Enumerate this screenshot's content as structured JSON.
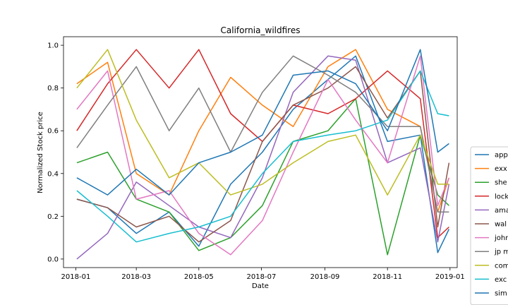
{
  "chart_data": {
    "type": "line",
    "title": "California_wildfires",
    "xlabel": "Date",
    "ylabel": "Normalized Stock price",
    "x_ticks": [
      "2018-01",
      "2018-03",
      "2018-05",
      "2018-07",
      "2018-09",
      "2018-11",
      "2019-01"
    ],
    "x_range": [
      "2017-12-20",
      "2019-01-08"
    ],
    "y_ticks": [
      "0.0",
      "0.2",
      "0.4",
      "0.6",
      "0.8",
      "1.0"
    ],
    "ylim": [
      -0.04,
      1.04
    ],
    "grid": false,
    "legend_position": "right (clipped)",
    "series": [
      {
        "name": "app",
        "color": "#1f77b4",
        "x": [
          "2018-01-02",
          "2018-02-01",
          "2018-03-01",
          "2018-04-02",
          "2018-05-01",
          "2018-06-01",
          "2018-07-02",
          "2018-08-01",
          "2018-09-04",
          "2018-10-01",
          "2018-11-01",
          "2018-12-03",
          "2018-12-20",
          "2018-12-31"
        ],
        "y": [
          0.28,
          0.24,
          0.12,
          0.22,
          0.06,
          0.35,
          0.5,
          0.7,
          0.84,
          0.95,
          0.55,
          0.58,
          0.03,
          0.14
        ]
      },
      {
        "name": "exx",
        "color": "#ff7f0e",
        "x": [
          "2018-01-02",
          "2018-02-01",
          "2018-03-01",
          "2018-04-02",
          "2018-05-01",
          "2018-06-01",
          "2018-07-02",
          "2018-08-01",
          "2018-09-04",
          "2018-10-01",
          "2018-11-01",
          "2018-12-03",
          "2018-12-20",
          "2018-12-31"
        ],
        "y": [
          0.82,
          0.92,
          0.4,
          0.3,
          0.6,
          0.85,
          0.72,
          0.62,
          0.9,
          0.98,
          0.7,
          0.62,
          0.22,
          0.38
        ]
      },
      {
        "name": "she",
        "color": "#2ca02c",
        "x": [
          "2018-01-02",
          "2018-02-01",
          "2018-03-01",
          "2018-04-02",
          "2018-05-01",
          "2018-06-01",
          "2018-07-02",
          "2018-08-01",
          "2018-09-04",
          "2018-10-01",
          "2018-11-01",
          "2018-12-03",
          "2018-12-20",
          "2018-12-31"
        ],
        "y": [
          0.45,
          0.5,
          0.28,
          0.22,
          0.04,
          0.1,
          0.25,
          0.55,
          0.6,
          0.75,
          0.02,
          0.58,
          0.3,
          0.25
        ]
      },
      {
        "name": "lock",
        "color": "#d62728",
        "x": [
          "2018-01-02",
          "2018-02-01",
          "2018-03-01",
          "2018-04-02",
          "2018-05-01",
          "2018-06-01",
          "2018-07-02",
          "2018-08-01",
          "2018-09-04",
          "2018-10-01",
          "2018-11-01",
          "2018-12-03",
          "2018-12-20",
          "2018-12-31"
        ],
        "y": [
          0.6,
          0.82,
          0.98,
          0.8,
          0.98,
          0.68,
          0.55,
          0.72,
          0.68,
          0.75,
          0.88,
          0.75,
          0.1,
          0.15
        ]
      },
      {
        "name": "ama",
        "color": "#9467bd",
        "x": [
          "2018-01-02",
          "2018-02-01",
          "2018-03-01",
          "2018-04-02",
          "2018-05-01",
          "2018-06-01",
          "2018-07-02",
          "2018-08-01",
          "2018-09-04",
          "2018-10-01",
          "2018-11-01",
          "2018-12-03",
          "2018-12-20",
          "2018-12-31"
        ],
        "y": [
          0.0,
          0.12,
          0.36,
          0.25,
          0.15,
          0.1,
          0.38,
          0.78,
          0.95,
          0.93,
          0.45,
          0.52,
          0.08,
          0.35
        ]
      },
      {
        "name": "wal",
        "color": "#8c564b",
        "x": [
          "2018-01-02",
          "2018-02-01",
          "2018-03-01",
          "2018-04-02",
          "2018-05-01",
          "2018-06-01",
          "2018-07-02",
          "2018-08-01",
          "2018-09-04",
          "2018-10-01",
          "2018-11-01",
          "2018-12-03",
          "2018-12-20",
          "2018-12-31"
        ],
        "y": [
          0.28,
          0.24,
          0.15,
          0.2,
          0.08,
          0.18,
          0.55,
          0.72,
          0.8,
          0.9,
          0.66,
          0.88,
          0.15,
          0.45
        ]
      },
      {
        "name": "john",
        "color": "#e377c2",
        "x": [
          "2018-01-02",
          "2018-02-01",
          "2018-03-01",
          "2018-04-02",
          "2018-05-01",
          "2018-06-01",
          "2018-07-02",
          "2018-08-01",
          "2018-09-04",
          "2018-10-01",
          "2018-11-01",
          "2018-12-03",
          "2018-12-20",
          "2018-12-31"
        ],
        "y": [
          0.7,
          0.88,
          0.28,
          0.32,
          0.12,
          0.02,
          0.18,
          0.5,
          0.84,
          0.65,
          0.45,
          0.95,
          0.25,
          0.38
        ]
      },
      {
        "name": "jp m",
        "color": "#7f7f7f",
        "x": [
          "2018-01-02",
          "2018-02-01",
          "2018-03-01",
          "2018-04-02",
          "2018-05-01",
          "2018-06-01",
          "2018-07-02",
          "2018-08-01",
          "2018-09-04",
          "2018-10-01",
          "2018-11-01",
          "2018-12-03",
          "2018-12-20",
          "2018-12-31"
        ],
        "y": [
          0.52,
          0.72,
          0.9,
          0.6,
          0.8,
          0.5,
          0.78,
          0.95,
          0.86,
          0.78,
          0.62,
          0.62,
          0.22,
          0.22
        ]
      },
      {
        "name": "com",
        "color": "#bcbd22",
        "x": [
          "2018-01-02",
          "2018-02-01",
          "2018-03-01",
          "2018-04-02",
          "2018-05-01",
          "2018-06-01",
          "2018-07-02",
          "2018-08-01",
          "2018-09-04",
          "2018-10-01",
          "2018-11-01",
          "2018-12-03",
          "2018-12-20",
          "2018-12-31"
        ],
        "y": [
          0.8,
          0.98,
          0.65,
          0.38,
          0.45,
          0.3,
          0.35,
          0.45,
          0.55,
          0.58,
          0.3,
          0.58,
          0.35,
          0.35
        ]
      },
      {
        "name": "exc",
        "color": "#17becf",
        "x": [
          "2018-01-02",
          "2018-02-01",
          "2018-03-01",
          "2018-04-02",
          "2018-05-01",
          "2018-06-01",
          "2018-07-02",
          "2018-08-01",
          "2018-09-04",
          "2018-10-01",
          "2018-11-01",
          "2018-12-03",
          "2018-12-20",
          "2018-12-31"
        ],
        "y": [
          0.32,
          0.2,
          0.08,
          0.12,
          0.15,
          0.2,
          0.4,
          0.55,
          0.58,
          0.6,
          0.65,
          0.88,
          0.68,
          0.67
        ]
      },
      {
        "name": "sim",
        "color": "#1f77b4",
        "x": [
          "2018-01-02",
          "2018-02-01",
          "2018-03-01",
          "2018-04-02",
          "2018-05-01",
          "2018-06-01",
          "2018-07-02",
          "2018-08-01",
          "2018-09-04",
          "2018-10-01",
          "2018-11-01",
          "2018-12-03",
          "2018-12-20",
          "2018-12-31"
        ],
        "y": [
          0.38,
          0.3,
          0.42,
          0.3,
          0.45,
          0.5,
          0.58,
          0.86,
          0.88,
          0.82,
          0.6,
          0.98,
          0.5,
          0.54
        ]
      }
    ]
  }
}
